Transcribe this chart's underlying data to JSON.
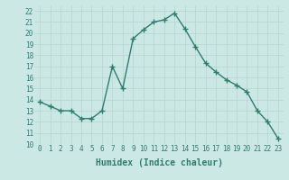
{
  "x": [
    0,
    1,
    2,
    3,
    4,
    5,
    6,
    7,
    8,
    9,
    10,
    11,
    12,
    13,
    14,
    15,
    16,
    17,
    18,
    19,
    20,
    21,
    22,
    23
  ],
  "y": [
    13.8,
    13.4,
    13.0,
    13.0,
    12.3,
    12.3,
    13.0,
    17.0,
    15.0,
    19.5,
    20.3,
    21.0,
    21.2,
    21.8,
    20.4,
    18.8,
    17.3,
    16.5,
    15.8,
    15.3,
    14.7,
    13.0,
    12.0,
    10.5
  ],
  "line_color": "#2e7d6e",
  "marker": "+",
  "bg_color": "#cce8e4",
  "grid_color": "#b8d8d4",
  "xlabel": "Humidex (Indice chaleur)",
  "xlim": [
    -0.5,
    23.5
  ],
  "ylim": [
    10,
    22.5
  ],
  "yticks": [
    10,
    11,
    12,
    13,
    14,
    15,
    16,
    17,
    18,
    19,
    20,
    21,
    22
  ],
  "xticks": [
    0,
    1,
    2,
    3,
    4,
    5,
    6,
    7,
    8,
    9,
    10,
    11,
    12,
    13,
    14,
    15,
    16,
    17,
    18,
    19,
    20,
    21,
    22,
    23
  ],
  "tick_label_fontsize": 5.5,
  "xlabel_fontsize": 7,
  "line_width": 1.0,
  "marker_size": 4,
  "marker_edge_width": 1.0
}
